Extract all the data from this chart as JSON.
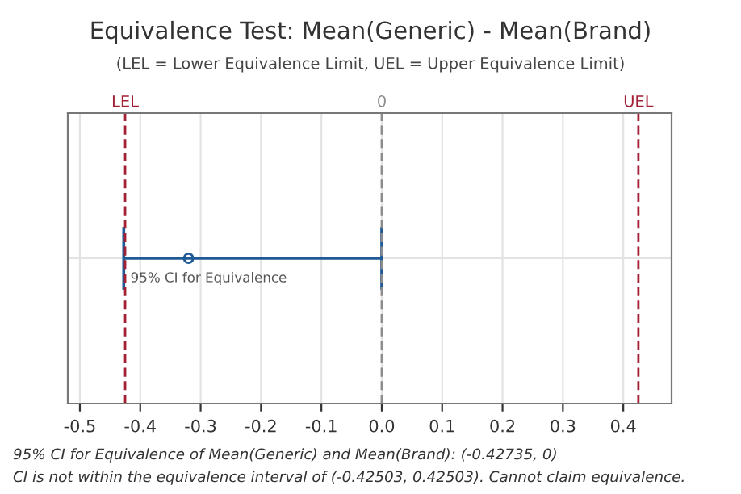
{
  "chart_data": {
    "type": "scatter",
    "title": "Equivalence Test: Mean(Generic) - Mean(Brand)",
    "subtitle": "(LEL = Lower Equivalence Limit, UEL = Upper Equivalence Limit)",
    "orientation": "horizontal",
    "categories": [
      null
    ],
    "series": [
      {
        "color": "#1f5a96",
        "values": [
          -0.32
        ],
        "errors": [
          [
            -0.42735,
            0
          ]
        ]
      }
    ],
    "marker": "circle",
    "xlim": [
      -0.52,
      0.48
    ],
    "xticks": [
      -0.5,
      -0.4,
      -0.3,
      -0.2,
      -0.1,
      {
        "value": 0,
        "label": "0.0"
      },
      0.1,
      0.2,
      0.3,
      0.4
    ],
    "ref_lines": [
      {
        "axis": "x",
        "value": -0.42503,
        "label": "LEL",
        "color": "#a31f34",
        "line_style": "dashed"
      },
      {
        "axis": "x",
        "value": 0,
        "label": "0",
        "color": "#8c8c8c",
        "line_style": "dashed"
      },
      {
        "axis": "x",
        "value": 0.42503,
        "label": "UEL",
        "color": "#a31f34",
        "line_style": "dashed"
      }
    ],
    "grid": true,
    "annotations": [
      {
        "text": "95% CI for Equivalence",
        "x": -0.42735
      },
      "95% CI for Equivalence of Mean(Generic) and Mean(Brand): (-0.42735, 0)",
      "CI is not within the equivalence interval of (-0.42503, 0.42503). Cannot claim equivalence."
    ]
  }
}
